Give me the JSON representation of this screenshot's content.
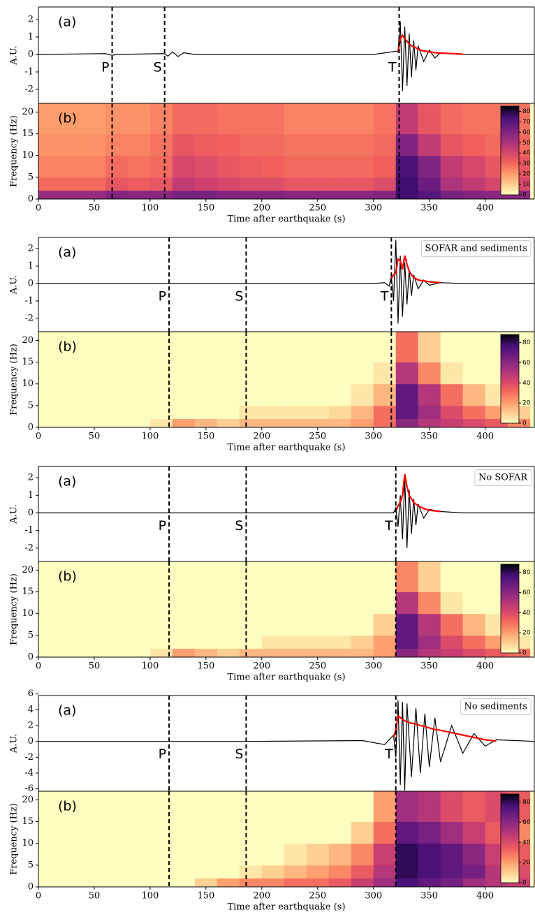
{
  "chart_data": [
    {
      "type": "line",
      "panel_label": "(a)",
      "ylabel": "A.U.",
      "xlim": [
        0,
        444
      ],
      "ylim": [
        -2.8,
        2.72
      ],
      "yticks": [
        -2,
        -1,
        0,
        1,
        2
      ],
      "markers": [
        {
          "label": "P",
          "x": 66
        },
        {
          "label": "S",
          "x": 113
        },
        {
          "label": "T",
          "x": 323
        }
      ],
      "x": [
        0,
        60,
        66,
        70,
        113,
        116,
        120,
        125,
        130,
        140,
        300,
        322,
        324,
        326,
        328,
        330,
        332,
        334,
        336,
        338,
        340,
        345,
        350,
        355,
        360,
        370,
        380,
        444
      ],
      "series": [
        {
          "color": "#000000",
          "values": [
            0,
            0.05,
            -0.05,
            0,
            0.05,
            -0.1,
            0.15,
            -0.12,
            0.1,
            0,
            0,
            0.2,
            1.9,
            -2.1,
            1.6,
            -1.8,
            1.2,
            -1.3,
            0.8,
            -0.9,
            0.5,
            -0.4,
            0.25,
            -0.2,
            0.1,
            0.05,
            0,
            0
          ]
        },
        {
          "color": "#ff0000",
          "values": [
            null,
            null,
            null,
            null,
            null,
            null,
            null,
            null,
            null,
            null,
            null,
            0.1,
            0.9,
            1.1,
            0.9,
            0.75,
            0.6,
            0.5,
            0.45,
            0.38,
            0.3,
            0.2,
            0.15,
            0.1,
            0.08,
            0.05,
            0.02,
            null
          ]
        }
      ]
    },
    {
      "type": "heatmap",
      "panel_label": "(b)",
      "ylabel": "Frequency (Hz)",
      "xlabel": "Time after earthquake (s)",
      "xlim": [
        0,
        444
      ],
      "xticks": [
        0,
        50,
        100,
        150,
        200,
        250,
        300,
        350,
        400
      ],
      "ylim": [
        0,
        22
      ],
      "yticks": [
        0,
        5,
        10,
        15,
        20
      ],
      "xbins": [
        0,
        20,
        40,
        60,
        80,
        100,
        120,
        140,
        160,
        180,
        200,
        220,
        240,
        260,
        280,
        300,
        320,
        340,
        360,
        380,
        400,
        420,
        440
      ],
      "ybins": [
        0,
        2,
        5,
        10,
        15,
        22
      ],
      "z": [
        [
          55,
          55,
          55,
          60,
          58,
          58,
          62,
          62,
          60,
          60,
          60,
          58,
          58,
          58,
          58,
          60,
          75,
          70,
          62,
          60,
          58,
          58
        ],
        [
          30,
          30,
          30,
          35,
          33,
          35,
          45,
          42,
          40,
          38,
          38,
          35,
          35,
          35,
          35,
          38,
          75,
          65,
          50,
          45,
          40,
          40
        ],
        [
          25,
          25,
          25,
          30,
          28,
          30,
          40,
          38,
          35,
          33,
          32,
          30,
          30,
          30,
          30,
          32,
          72,
          60,
          45,
          40,
          35,
          35
        ],
        [
          22,
          22,
          22,
          25,
          25,
          28,
          35,
          33,
          32,
          30,
          30,
          28,
          28,
          28,
          28,
          30,
          60,
          45,
          35,
          32,
          30,
          30
        ],
        [
          20,
          20,
          20,
          22,
          22,
          25,
          30,
          30,
          28,
          28,
          28,
          25,
          25,
          25,
          25,
          28,
          45,
          35,
          30,
          28,
          28,
          28
        ]
      ],
      "zlim": [
        0,
        85
      ],
      "zticks": [
        0,
        10,
        20,
        30,
        40,
        50,
        60,
        70,
        80
      ],
      "colormap": [
        "#fcfdbf",
        "#feca8d",
        "#fd9668",
        "#f1605d",
        "#cd4071",
        "#9e2f7f",
        "#721f81",
        "#440f76",
        "#000004"
      ]
    },
    {
      "type": "line",
      "panel_label": "(a)",
      "annotation": "SOFAR and sediments",
      "ylabel": "A.U.",
      "xlim": [
        0,
        444
      ],
      "ylim": [
        -2.76,
        2.64
      ],
      "yticks": [
        -2,
        -1,
        0,
        1,
        2
      ],
      "markers": [
        {
          "label": "P",
          "x": 117
        },
        {
          "label": "S",
          "x": 186
        },
        {
          "label": "T",
          "x": 316
        }
      ],
      "x": [
        0,
        117,
        186,
        300,
        310,
        314,
        316,
        318,
        320,
        322,
        324,
        326,
        328,
        330,
        332,
        334,
        336,
        340,
        345,
        350,
        360,
        380,
        444
      ],
      "series": [
        {
          "color": "#000000",
          "values": [
            0,
            0,
            0,
            0,
            0.05,
            -0.15,
            0.4,
            -1.0,
            2.5,
            -2.3,
            1.6,
            -1.9,
            1.2,
            -1.2,
            0.8,
            -0.7,
            0.5,
            -0.3,
            0.2,
            -0.1,
            0.05,
            0,
            0
          ]
        },
        {
          "color": "#ff0000",
          "values": [
            null,
            null,
            null,
            null,
            null,
            null,
            0.3,
            0.5,
            0.6,
            1.4,
            1.3,
            0.8,
            1.6,
            1.1,
            0.7,
            0.5,
            0.35,
            0.2,
            0.15,
            0.1,
            0.05,
            null,
            null
          ]
        }
      ]
    },
    {
      "type": "heatmap",
      "panel_label": "(b)",
      "ylabel": "Frequency (Hz)",
      "xlabel": "Time after earthquake (s)",
      "xlim": [
        0,
        444
      ],
      "xticks": [
        0,
        50,
        100,
        150,
        200,
        250,
        300,
        350,
        400
      ],
      "ylim": [
        0,
        22
      ],
      "yticks": [
        0,
        5,
        10,
        15,
        20
      ],
      "xbins": [
        0,
        20,
        40,
        60,
        80,
        100,
        120,
        140,
        160,
        180,
        200,
        220,
        240,
        260,
        280,
        300,
        320,
        340,
        360,
        380,
        400,
        420,
        440
      ],
      "ybins": [
        0,
        2,
        5,
        10,
        15,
        22
      ],
      "z": [
        [
          0,
          0,
          0,
          0,
          0,
          5,
          20,
          15,
          10,
          15,
          15,
          15,
          15,
          15,
          20,
          30,
          60,
          50,
          45,
          40,
          35,
          25
        ],
        [
          0,
          0,
          0,
          0,
          0,
          0,
          0,
          0,
          0,
          5,
          5,
          5,
          5,
          8,
          15,
          30,
          70,
          55,
          40,
          30,
          20,
          10
        ],
        [
          0,
          0,
          0,
          0,
          0,
          0,
          0,
          0,
          0,
          0,
          0,
          0,
          0,
          0,
          5,
          15,
          70,
          50,
          30,
          15,
          5,
          0
        ],
        [
          0,
          0,
          0,
          0,
          0,
          0,
          0,
          0,
          0,
          0,
          0,
          0,
          0,
          0,
          0,
          5,
          50,
          25,
          5,
          0,
          0,
          0
        ],
        [
          0,
          0,
          0,
          0,
          0,
          0,
          0,
          0,
          0,
          0,
          0,
          0,
          0,
          0,
          0,
          0,
          30,
          10,
          0,
          0,
          0,
          0
        ]
      ],
      "zlim": [
        0,
        88
      ],
      "zticks": [
        0,
        20,
        40,
        60,
        80
      ],
      "colormap": [
        "#fcfdbf",
        "#feca8d",
        "#fd9668",
        "#f1605d",
        "#cd4071",
        "#9e2f7f",
        "#721f81",
        "#440f76",
        "#000004"
      ]
    },
    {
      "type": "line",
      "panel_label": "(a)",
      "annotation": "No SOFAR",
      "ylabel": "A.U.",
      "xlim": [
        0,
        444
      ],
      "ylim": [
        -2.76,
        2.64
      ],
      "yticks": [
        -2,
        -1,
        0,
        1,
        2
      ],
      "markers": [
        {
          "label": "P",
          "x": 117
        },
        {
          "label": "S",
          "x": 186
        },
        {
          "label": "T",
          "x": 320
        }
      ],
      "x": [
        0,
        117,
        186,
        318,
        320,
        322,
        324,
        326,
        328,
        330,
        332,
        334,
        336,
        338,
        340,
        345,
        350,
        360,
        380,
        444
      ],
      "series": [
        {
          "color": "#000000",
          "values": [
            0,
            0,
            0,
            0,
            0.3,
            -0.8,
            1.0,
            -1.5,
            2.0,
            -2.0,
            1.3,
            -1.2,
            0.8,
            -0.7,
            0.5,
            -0.3,
            0.2,
            0.08,
            0,
            0
          ]
        },
        {
          "color": "#ff0000",
          "values": [
            null,
            null,
            null,
            null,
            0.1,
            0.4,
            0.6,
            1.0,
            2.2,
            1.5,
            1.0,
            0.8,
            0.6,
            0.5,
            0.4,
            0.25,
            0.15,
            0.08,
            null,
            null
          ]
        }
      ]
    },
    {
      "type": "heatmap",
      "panel_label": "(b)",
      "ylabel": "Frequency (Hz)",
      "xlabel": "Time after earthquake (s)",
      "xlim": [
        0,
        444
      ],
      "xticks": [
        0,
        50,
        100,
        150,
        200,
        250,
        300,
        350,
        400
      ],
      "ylim": [
        0,
        22
      ],
      "yticks": [
        0,
        5,
        10,
        15,
        20
      ],
      "xbins": [
        0,
        20,
        40,
        60,
        80,
        100,
        120,
        140,
        160,
        180,
        200,
        220,
        240,
        260,
        280,
        300,
        320,
        340,
        360,
        380,
        400,
        420,
        440
      ],
      "ybins": [
        0,
        2,
        5,
        10,
        15,
        22
      ],
      "z": [
        [
          0,
          0,
          0,
          0,
          0,
          5,
          20,
          15,
          10,
          15,
          15,
          15,
          15,
          15,
          15,
          20,
          60,
          50,
          45,
          40,
          35,
          30
        ],
        [
          0,
          0,
          0,
          0,
          0,
          0,
          0,
          0,
          0,
          0,
          5,
          5,
          5,
          5,
          10,
          20,
          70,
          55,
          40,
          30,
          20,
          5
        ],
        [
          0,
          0,
          0,
          0,
          0,
          0,
          0,
          0,
          0,
          0,
          0,
          0,
          0,
          0,
          0,
          10,
          70,
          50,
          30,
          15,
          5,
          0
        ],
        [
          0,
          0,
          0,
          0,
          0,
          0,
          0,
          0,
          0,
          0,
          0,
          0,
          0,
          0,
          0,
          0,
          50,
          25,
          5,
          0,
          0,
          0
        ],
        [
          0,
          0,
          0,
          0,
          0,
          0,
          0,
          0,
          0,
          0,
          0,
          0,
          0,
          0,
          0,
          0,
          25,
          10,
          0,
          0,
          0,
          0
        ]
      ],
      "zlim": [
        0,
        88
      ],
      "zticks": [
        0,
        20,
        40,
        60,
        80
      ],
      "colormap": [
        "#fcfdbf",
        "#feca8d",
        "#fd9668",
        "#f1605d",
        "#cd4071",
        "#9e2f7f",
        "#721f81",
        "#440f76",
        "#000004"
      ]
    },
    {
      "type": "line",
      "panel_label": "(a)",
      "annotation": "No sediments",
      "ylabel": "A.U.",
      "xlim": [
        0,
        444
      ],
      "ylim": [
        -6.3,
        5.8
      ],
      "yticks": [
        -6,
        -4,
        -2,
        0,
        2,
        4,
        6
      ],
      "markers": [
        {
          "label": "P",
          "x": 117
        },
        {
          "label": "S",
          "x": 186
        },
        {
          "label": "T",
          "x": 320
        }
      ],
      "x": [
        0,
        117,
        186,
        290,
        310,
        318,
        320,
        322,
        324,
        326,
        328,
        330,
        334,
        338,
        342,
        346,
        350,
        355,
        360,
        370,
        380,
        390,
        400,
        410,
        444
      ],
      "series": [
        {
          "color": "#000000",
          "values": [
            0,
            0,
            0,
            0.1,
            -0.4,
            0.8,
            -2,
            5.2,
            -5.5,
            5.0,
            -6.2,
            4.8,
            -4.5,
            4.2,
            -4,
            3.5,
            -3.2,
            3,
            -2.6,
            2,
            -1.5,
            1,
            -0.6,
            0.2,
            0
          ]
        },
        {
          "color": "#ff0000",
          "values": [
            null,
            null,
            null,
            null,
            null,
            0.5,
            1.5,
            3.2,
            3.0,
            2.8,
            2.6,
            2.5,
            2.3,
            2.2,
            2.0,
            1.9,
            1.7,
            1.5,
            1.4,
            1.1,
            0.8,
            0.5,
            0.2,
            0.05,
            null
          ]
        }
      ]
    },
    {
      "type": "heatmap",
      "panel_label": "(b)",
      "ylabel": "Frequency (Hz)",
      "xlabel": "Time after earthquake (s)",
      "xlim": [
        0,
        444
      ],
      "xticks": [
        0,
        50,
        100,
        150,
        200,
        250,
        300,
        350,
        400
      ],
      "ylim": [
        0,
        22
      ],
      "yticks": [
        0,
        5,
        10,
        15,
        20
      ],
      "xbins": [
        0,
        20,
        40,
        60,
        80,
        100,
        120,
        140,
        160,
        180,
        200,
        220,
        240,
        260,
        280,
        300,
        320,
        340,
        360,
        380,
        400,
        420,
        440
      ],
      "ybins": [
        0,
        2,
        5,
        10,
        15,
        22
      ],
      "z": [
        [
          0,
          0,
          0,
          0,
          0,
          0,
          0,
          10,
          20,
          25,
          25,
          30,
          30,
          35,
          45,
          55,
          75,
          70,
          65,
          55,
          50,
          45
        ],
        [
          0,
          0,
          0,
          0,
          0,
          0,
          0,
          0,
          0,
          5,
          10,
          15,
          20,
          25,
          35,
          50,
          80,
          75,
          70,
          65,
          50,
          40
        ],
        [
          0,
          0,
          0,
          0,
          0,
          0,
          0,
          0,
          0,
          0,
          0,
          5,
          10,
          15,
          25,
          45,
          80,
          75,
          70,
          60,
          45,
          35
        ],
        [
          0,
          0,
          0,
          0,
          0,
          0,
          0,
          0,
          0,
          0,
          0,
          0,
          0,
          0,
          10,
          30,
          70,
          65,
          55,
          45,
          35,
          25
        ],
        [
          0,
          0,
          0,
          0,
          0,
          0,
          0,
          0,
          0,
          0,
          0,
          0,
          0,
          0,
          0,
          20,
          55,
          50,
          40,
          35,
          40,
          35
        ]
      ],
      "zlim": [
        0,
        88
      ],
      "zticks": [
        0,
        20,
        40,
        60,
        80
      ],
      "colormap": [
        "#fcfdbf",
        "#feca8d",
        "#fd9668",
        "#f1605d",
        "#cd4071",
        "#9e2f7f",
        "#721f81",
        "#440f76",
        "#000004"
      ]
    }
  ]
}
